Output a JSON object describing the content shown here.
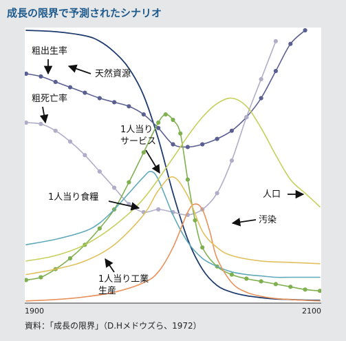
{
  "title": "成長の限界で予測されたシナリオ",
  "source": "資料：「成長の限界」（D.Hメドウズら、1972）",
  "colors": {
    "panel": "#e6e7e8",
    "plot": "#ffffff",
    "title": "#1e5a8c",
    "resources": "#1d3a6e",
    "birth_rate": "#5a5f92",
    "death_rate": "#b0adc8",
    "services": "#7fb04f",
    "food": "#5fa8b8",
    "population": "#c5cf5a",
    "pollution": "#e8915a",
    "industry": "#e0c05a"
  },
  "chart_data": {
    "type": "line",
    "title": "成長の限界で予測されたシナリオ",
    "xlabel": "",
    "ylabel": "",
    "xlim": [
      1900,
      2100
    ],
    "ylim": [
      0,
      100
    ],
    "x_ticks": [
      "1900",
      "2100"
    ],
    "grid": false,
    "legend": "none",
    "series": [
      {
        "name": "天然資源",
        "key": "resources",
        "markers": false,
        "x": [
          1900,
          1920,
          1940,
          1950,
          1960,
          1970,
          1980,
          1990,
          2000,
          2010,
          2020,
          2030,
          2040,
          2050,
          2060,
          2070,
          2080,
          2090,
          2100
        ],
        "y": [
          100,
          99.5,
          98,
          96,
          92,
          86,
          76,
          60,
          40,
          23,
          12,
          6,
          3.5,
          2.2,
          1.5,
          1,
          0.8,
          0.6,
          0.5
        ]
      },
      {
        "name": "粗出生率",
        "key": "birth_rate",
        "markers": true,
        "x": [
          1900,
          1910,
          1920,
          1930,
          1940,
          1950,
          1960,
          1970,
          1980,
          1990,
          2000,
          2010,
          2020,
          2030,
          2040,
          2050,
          2060,
          2070,
          2080,
          2090
        ],
        "y": [
          84,
          83,
          81,
          79,
          77,
          75,
          73.5,
          72,
          69,
          64,
          58,
          57,
          58,
          60,
          63,
          68,
          75,
          85,
          95,
          100
        ]
      },
      {
        "name": "粗死亡率",
        "key": "death_rate",
        "markers": true,
        "x": [
          1900,
          1910,
          1920,
          1930,
          1940,
          1950,
          1960,
          1970,
          1980,
          1990,
          2000,
          2010,
          2020,
          2030,
          2040,
          2050,
          2060,
          2070
        ],
        "y": [
          66,
          65.5,
          63,
          59,
          54,
          48,
          42,
          36,
          33,
          34,
          33,
          32,
          34,
          40,
          52,
          68,
          82,
          96
        ]
      },
      {
        "name": "1人当りサービス",
        "key": "services",
        "markers": true,
        "x": [
          1900,
          1910,
          1920,
          1930,
          1940,
          1950,
          1960,
          1970,
          1980,
          1990,
          1995,
          2000,
          2005,
          2010,
          2015,
          2020,
          2030,
          2040,
          2050,
          2060,
          2070,
          2080,
          2090,
          2100
        ],
        "y": [
          8,
          9,
          12,
          16,
          21,
          27,
          34,
          44,
          55,
          66,
          69,
          67,
          62,
          45,
          30,
          20,
          13,
          10,
          8.5,
          7.5,
          6.5,
          5.5,
          4.5,
          4
        ]
      },
      {
        "name": "1人当り食糧",
        "key": "food",
        "markers": false,
        "x": [
          1900,
          1920,
          1940,
          1950,
          1960,
          1970,
          1980,
          1985,
          1990,
          2000,
          2010,
          2020,
          2030,
          2040,
          2050,
          2060,
          2070,
          2080,
          2090,
          2100
        ],
        "y": [
          21,
          23,
          26,
          29,
          34,
          40,
          46,
          48,
          45,
          32,
          22,
          16,
          13,
          11,
          10,
          9.5,
          9,
          9,
          9,
          9
        ]
      },
      {
        "name": "人口",
        "key": "population",
        "markers": false,
        "x": [
          1900,
          1920,
          1940,
          1960,
          1980,
          2000,
          2010,
          2020,
          2030,
          2040,
          2050,
          2060,
          2070,
          2080,
          2090,
          2100
        ],
        "y": [
          15,
          17,
          21,
          28,
          38,
          53,
          61,
          68,
          73,
          75,
          72,
          64,
          54,
          45,
          40,
          35
        ]
      },
      {
        "name": "汚染",
        "key": "pollution",
        "markers": false,
        "x": [
          1900,
          1920,
          1940,
          1960,
          1980,
          1990,
          2000,
          2010,
          2015,
          2020,
          2025,
          2030,
          2040,
          2050,
          2060,
          2070,
          2080,
          2090,
          2100
        ],
        "y": [
          0.3,
          0.8,
          1.8,
          3.5,
          7,
          11,
          20,
          33,
          36,
          34,
          26,
          16,
          7,
          3.5,
          2,
          1.2,
          0.8,
          0.5,
          0.3
        ]
      },
      {
        "name": "1人当り工業生産",
        "key": "industry",
        "markers": false,
        "x": [
          1900,
          1920,
          1940,
          1960,
          1980,
          1990,
          2000,
          2010,
          2020,
          2030,
          2040,
          2060,
          2080,
          2100
        ],
        "y": [
          10,
          12,
          15,
          21,
          32,
          41,
          46,
          39,
          26,
          20,
          17,
          15,
          14.5,
          14
        ]
      }
    ],
    "annotations": [
      {
        "key": "birth_rate",
        "lines": [
          "粗出生率"
        ]
      },
      {
        "key": "resources",
        "lines": [
          "天然資源"
        ]
      },
      {
        "key": "death_rate",
        "lines": [
          "粗死亡率"
        ]
      },
      {
        "key": "services",
        "lines": [
          "1人当り",
          "サービス"
        ]
      },
      {
        "key": "food",
        "lines": [
          "1人当り食糧"
        ]
      },
      {
        "key": "population",
        "lines": [
          "人口"
        ]
      },
      {
        "key": "pollution",
        "lines": [
          "汚染"
        ]
      },
      {
        "key": "industry",
        "lines": [
          "1人当り工業",
          "生産"
        ]
      }
    ]
  }
}
